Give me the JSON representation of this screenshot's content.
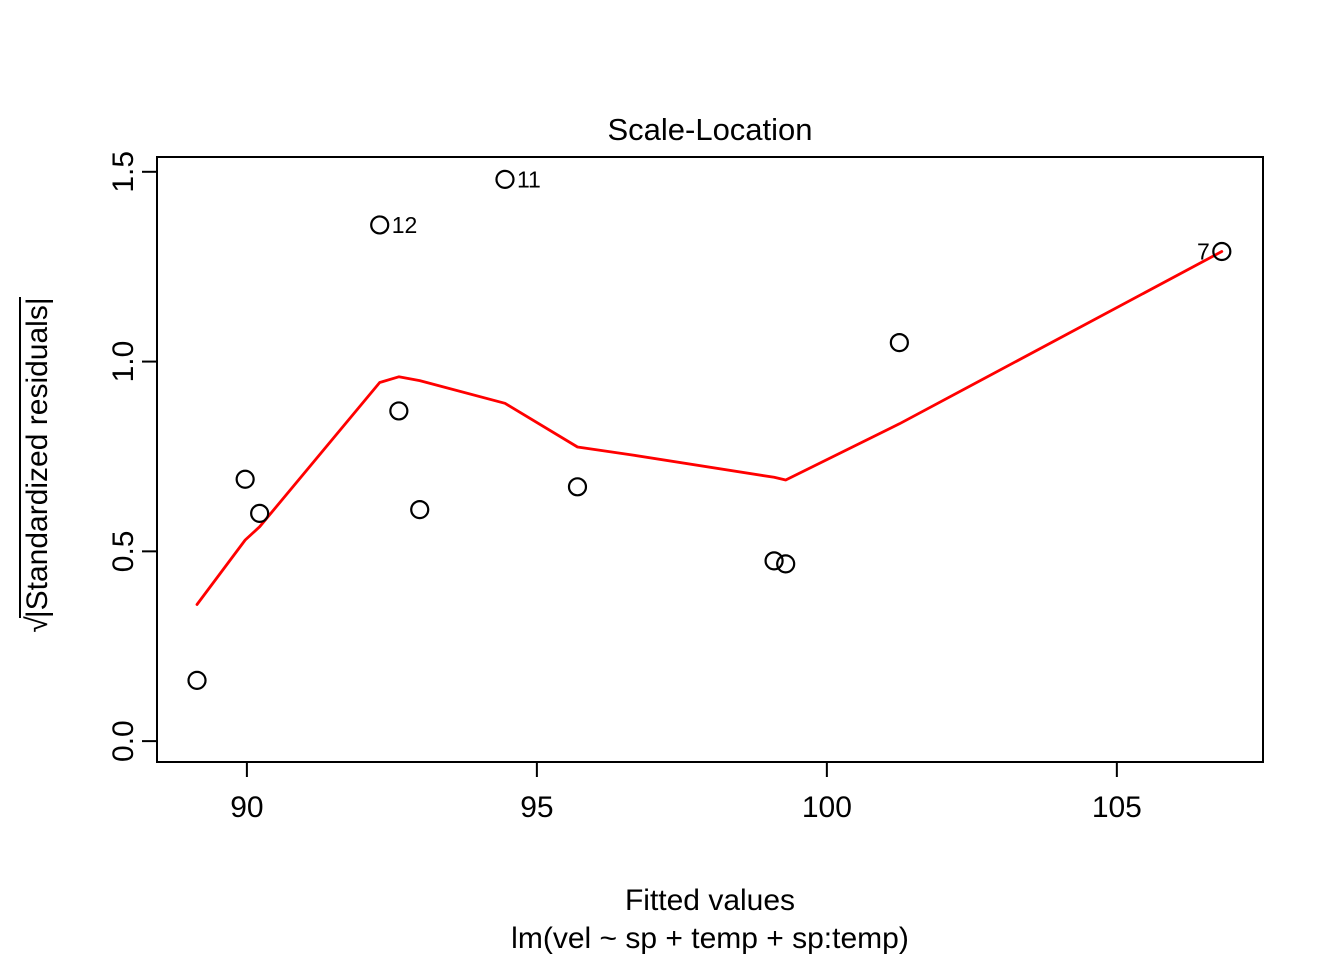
{
  "figure": {
    "title": "Scale-Location",
    "xlabel": "Fitted values",
    "xsublabel": "lm(vel ~ sp + temp + sp:temp)",
    "ylabel_radical": "√",
    "ylabel_body": "|Standardized residuals|"
  },
  "colors": {
    "background": "#ffffff",
    "axis": "#000000",
    "text": "#000000",
    "points": "#000000",
    "smooth_line": "#ff0000"
  },
  "chart_data": {
    "type": "scatter",
    "title": "Scale-Location",
    "xlabel": "Fitted values",
    "model_caption": "lm(vel ~ sp + temp + sp:temp)",
    "ylabel": "sqrt(|Standardized residuals|)",
    "grid": false,
    "legend": null,
    "xlim": [
      88.45,
      107.52
    ],
    "ylim": [
      -0.055,
      1.539
    ],
    "x_ticks": [
      90,
      95,
      100,
      105
    ],
    "x_tick_labels": [
      "90",
      "95",
      "100",
      "105"
    ],
    "y_ticks": [
      0.0,
      0.5,
      1.0,
      1.5
    ],
    "y_tick_labels": [
      "0.0",
      "0.5",
      "1.0",
      "1.5"
    ],
    "points": [
      {
        "x": 89.14,
        "y": 0.16
      },
      {
        "x": 89.97,
        "y": 0.69
      },
      {
        "x": 90.22,
        "y": 0.6
      },
      {
        "x": 92.29,
        "y": 1.36,
        "label": "12",
        "label_side": "right"
      },
      {
        "x": 92.62,
        "y": 0.87
      },
      {
        "x": 92.98,
        "y": 0.61
      },
      {
        "x": 94.45,
        "y": 1.48,
        "label": "11",
        "label_side": "right"
      },
      {
        "x": 95.7,
        "y": 0.67
      },
      {
        "x": 99.09,
        "y": 0.475
      },
      {
        "x": 99.29,
        "y": 0.467
      },
      {
        "x": 101.25,
        "y": 1.05
      },
      {
        "x": 106.81,
        "y": 1.29,
        "label": "7",
        "label_side": "left"
      }
    ],
    "smooth_line": {
      "name": "lowess-smooth",
      "color": "#ff0000",
      "points": [
        [
          89.14,
          0.36
        ],
        [
          89.97,
          0.53
        ],
        [
          90.22,
          0.565
        ],
        [
          92.29,
          0.945
        ],
        [
          92.62,
          0.96
        ],
        [
          92.98,
          0.95
        ],
        [
          94.45,
          0.89
        ],
        [
          95.7,
          0.775
        ],
        [
          96.6,
          0.755
        ],
        [
          99.09,
          0.695
        ],
        [
          99.29,
          0.688
        ],
        [
          101.25,
          0.836
        ],
        [
          106.81,
          1.29
        ]
      ]
    }
  }
}
